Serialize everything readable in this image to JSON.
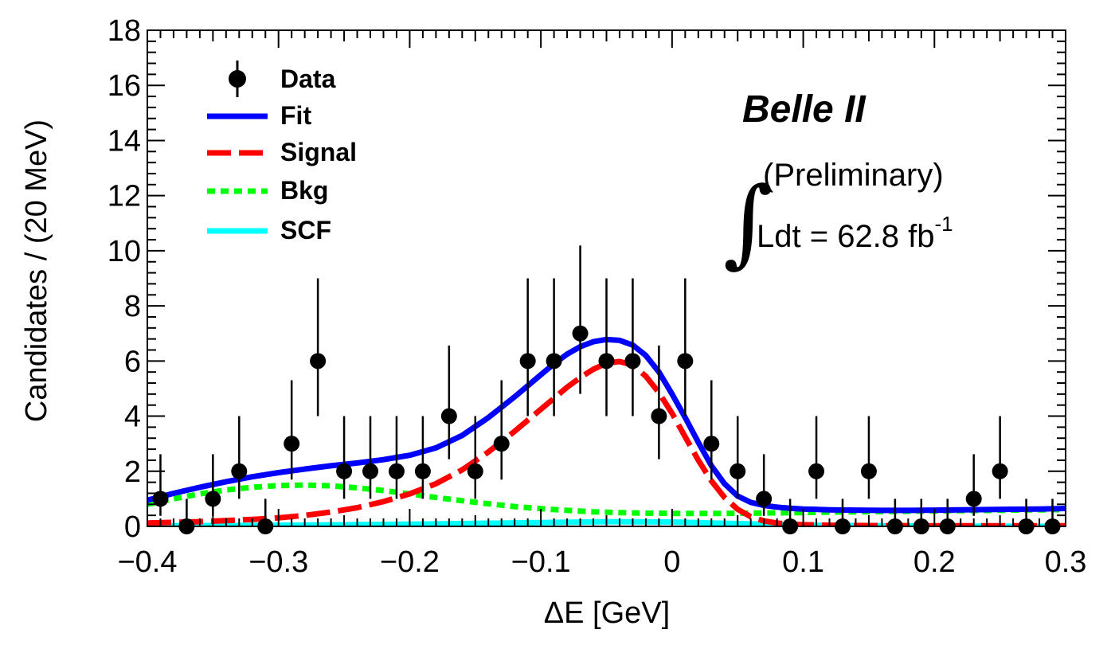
{
  "chart_data": {
    "type": "scatter",
    "xlabel": "ΔE [GeV]",
    "ylabel": "Candidates / (20 MeV)",
    "xlim": [
      -0.4,
      0.3
    ],
    "ylim": [
      0,
      18
    ],
    "x_major_ticks": [
      -0.4,
      -0.3,
      -0.2,
      -0.1,
      0,
      0.1,
      0.2,
      0.3
    ],
    "x_tick_labels": [
      "−0.4",
      "−0.3",
      "−0.2",
      "−0.1",
      "0",
      "0.1",
      "0.2",
      "0.3"
    ],
    "y_major_ticks": [
      0,
      2,
      4,
      6,
      8,
      10,
      12,
      14,
      16,
      18
    ],
    "y_tick_labels": [
      "0",
      "2",
      "4",
      "6",
      "8",
      "10",
      "12",
      "14",
      "16",
      "18"
    ],
    "grid": false,
    "legend_position": "top-left",
    "legend": [
      {
        "label": "Data",
        "style": "marker",
        "color": "#000000"
      },
      {
        "label": "Fit",
        "style": "solid",
        "color": "#0000ff"
      },
      {
        "label": "Signal",
        "style": "dashed",
        "color": "#ff0000"
      },
      {
        "label": "Bkg",
        "style": "dotted",
        "color": "#00ff00"
      },
      {
        "label": "SCF",
        "style": "solid",
        "color": "#00ffff"
      }
    ],
    "annotations": {
      "experiment": "Belle II",
      "status": "(Preliminary)",
      "lumi_prefix": "Ldt = 62.8 fb",
      "lumi_exponent": "-1"
    },
    "data_points": {
      "x": [
        -0.39,
        -0.37,
        -0.35,
        -0.33,
        -0.31,
        -0.29,
        -0.27,
        -0.25,
        -0.23,
        -0.21,
        -0.19,
        -0.17,
        -0.15,
        -0.13,
        -0.11,
        -0.09,
        -0.07,
        -0.05,
        -0.03,
        -0.01,
        0.01,
        0.03,
        0.05,
        0.07,
        0.09,
        0.11,
        0.13,
        0.15,
        0.17,
        0.19,
        0.21,
        0.23,
        0.25,
        0.27,
        0.29
      ],
      "y": [
        1,
        0,
        1,
        2,
        0,
        3,
        6,
        2,
        2,
        2,
        2,
        4,
        2,
        3,
        6,
        6,
        7,
        6,
        6,
        4,
        6,
        3,
        2,
        1,
        0,
        2,
        0,
        2,
        0,
        0,
        0,
        1,
        2,
        0,
        0
      ]
    },
    "series": [
      {
        "name": "Fit",
        "x": [
          -0.4,
          -0.38,
          -0.36,
          -0.34,
          -0.32,
          -0.3,
          -0.28,
          -0.26,
          -0.24,
          -0.22,
          -0.2,
          -0.18,
          -0.16,
          -0.14,
          -0.12,
          -0.1,
          -0.09,
          -0.08,
          -0.07,
          -0.06,
          -0.05,
          -0.04,
          -0.03,
          -0.02,
          -0.01,
          0,
          0.01,
          0.02,
          0.03,
          0.04,
          0.05,
          0.06,
          0.07,
          0.08,
          0.09,
          0.1,
          0.12,
          0.14,
          0.16,
          0.18,
          0.2,
          0.22,
          0.24,
          0.26,
          0.28,
          0.3
        ],
        "y": [
          0.95,
          1.2,
          1.42,
          1.62,
          1.8,
          1.95,
          2.08,
          2.2,
          2.3,
          2.42,
          2.58,
          2.85,
          3.3,
          3.95,
          4.7,
          5.5,
          5.9,
          6.25,
          6.52,
          6.7,
          6.78,
          6.75,
          6.58,
          6.2,
          5.6,
          4.8,
          3.95,
          3.05,
          2.2,
          1.55,
          1.1,
          0.87,
          0.76,
          0.7,
          0.66,
          0.63,
          0.6,
          0.59,
          0.58,
          0.58,
          0.59,
          0.6,
          0.61,
          0.62,
          0.63,
          0.65
        ]
      },
      {
        "name": "Signal",
        "x": [
          -0.4,
          -0.36,
          -0.32,
          -0.3,
          -0.28,
          -0.26,
          -0.24,
          -0.22,
          -0.2,
          -0.18,
          -0.16,
          -0.14,
          -0.12,
          -0.1,
          -0.09,
          -0.08,
          -0.07,
          -0.06,
          -0.05,
          -0.04,
          -0.03,
          -0.02,
          -0.01,
          0,
          0.01,
          0.02,
          0.03,
          0.04,
          0.05,
          0.06,
          0.07,
          0.08,
          0.09,
          0.1,
          0.12,
          0.15,
          0.2,
          0.25,
          0.3
        ],
        "y": [
          0.12,
          0.17,
          0.25,
          0.31,
          0.4,
          0.52,
          0.68,
          0.9,
          1.18,
          1.55,
          2.05,
          2.7,
          3.45,
          4.25,
          4.65,
          5.05,
          5.4,
          5.7,
          5.92,
          5.98,
          5.85,
          5.45,
          4.85,
          4.1,
          3.25,
          2.4,
          1.65,
          1.05,
          0.62,
          0.35,
          0.2,
          0.12,
          0.08,
          0.06,
          0.04,
          0.03,
          0.02,
          0.02,
          0.02
        ]
      },
      {
        "name": "Bkg",
        "x": [
          -0.4,
          -0.38,
          -0.36,
          -0.34,
          -0.32,
          -0.3,
          -0.28,
          -0.26,
          -0.24,
          -0.22,
          -0.2,
          -0.18,
          -0.16,
          -0.14,
          -0.12,
          -0.1,
          -0.08,
          -0.06,
          -0.04,
          -0.02,
          0,
          0.02,
          0.04,
          0.06,
          0.08,
          0.1,
          0.12,
          0.14,
          0.16,
          0.18,
          0.2,
          0.22,
          0.24,
          0.26,
          0.28,
          0.3
        ],
        "y": [
          0.8,
          1.0,
          1.18,
          1.32,
          1.42,
          1.48,
          1.5,
          1.47,
          1.4,
          1.3,
          1.18,
          1.05,
          0.93,
          0.82,
          0.72,
          0.64,
          0.58,
          0.53,
          0.5,
          0.48,
          0.47,
          0.47,
          0.47,
          0.48,
          0.49,
          0.5,
          0.52,
          0.53,
          0.54,
          0.55,
          0.56,
          0.57,
          0.58,
          0.59,
          0.6,
          0.61
        ]
      },
      {
        "name": "SCF",
        "x": [
          -0.4,
          -0.3,
          -0.2,
          -0.1,
          -0.05,
          0,
          0.05,
          0.1,
          0.2,
          0.3
        ],
        "y": [
          0.02,
          0.04,
          0.08,
          0.14,
          0.17,
          0.16,
          0.1,
          0.04,
          0.01,
          0.0
        ]
      }
    ],
    "error_bars_note": "Poisson-style vertical error bars on data points"
  }
}
